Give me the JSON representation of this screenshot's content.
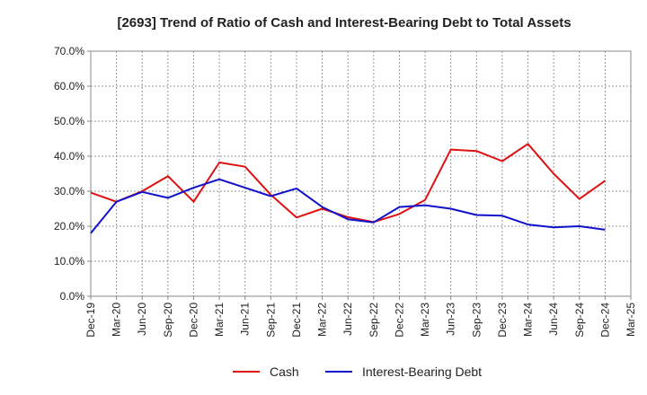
{
  "chart_data": {
    "type": "line",
    "title": "[2693]  Trend of Ratio of Cash and Interest-Bearing Debt to Total Assets",
    "xlabel": "",
    "ylabel": "",
    "ylim": [
      0,
      70
    ],
    "y_ticks": [
      "0.0%",
      "10.0%",
      "20.0%",
      "30.0%",
      "40.0%",
      "50.0%",
      "60.0%",
      "70.0%"
    ],
    "categories": [
      "Dec-19",
      "Mar-20",
      "Jun-20",
      "Sep-20",
      "Dec-20",
      "Mar-21",
      "Jun-21",
      "Sep-21",
      "Dec-21",
      "Mar-22",
      "Jun-22",
      "Sep-22",
      "Dec-22",
      "Mar-23",
      "Jun-23",
      "Sep-23",
      "Dec-23",
      "Mar-24",
      "Jun-24",
      "Sep-24",
      "Dec-24",
      "Mar-25"
    ],
    "grid": true,
    "legend_position": "bottom",
    "series": [
      {
        "name": "Cash",
        "color": "#dd1111",
        "values": [
          29.6,
          27.0,
          30.0,
          34.3,
          27.0,
          38.2,
          37.0,
          29.0,
          22.5,
          25.0,
          22.6,
          21.2,
          23.5,
          27.5,
          41.9,
          41.5,
          38.6,
          43.5,
          35.0,
          27.8,
          33.0,
          null
        ]
      },
      {
        "name": "Interest-Bearing Debt",
        "color": "#1111cc",
        "values": [
          18.0,
          27.0,
          29.8,
          28.1,
          31.0,
          33.4,
          31.0,
          28.6,
          30.8,
          25.5,
          22.0,
          21.1,
          25.5,
          26.0,
          25.0,
          23.2,
          23.0,
          20.5,
          19.7,
          20.0,
          19.0,
          null
        ]
      }
    ]
  }
}
